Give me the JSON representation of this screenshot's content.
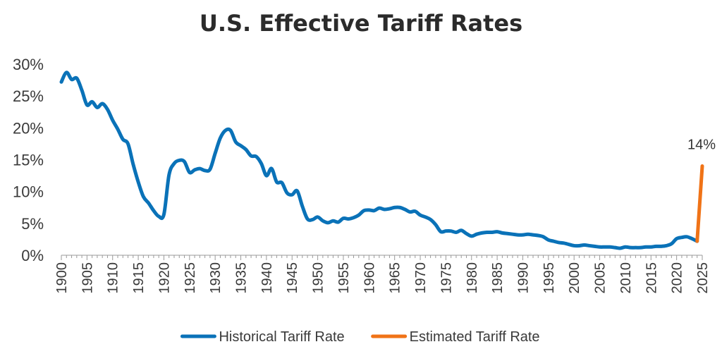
{
  "chart_data": {
    "type": "line",
    "title": "U.S. Effective Tariff Rates",
    "xlabel": "",
    "ylabel": "",
    "xlim": [
      1900,
      2025
    ],
    "ylim": [
      0,
      30
    ],
    "grid": false,
    "legend_position": "bottom",
    "y_ticks": [
      "0%",
      "5%",
      "10%",
      "15%",
      "20%",
      "25%",
      "30%"
    ],
    "y_tick_values": [
      0,
      5,
      10,
      15,
      20,
      25,
      30
    ],
    "x_ticks": [
      "1900",
      "1905",
      "1910",
      "1915",
      "1920",
      "1925",
      "1930",
      "1935",
      "1940",
      "1945",
      "1950",
      "1955",
      "1960",
      "1965",
      "1970",
      "1975",
      "1980",
      "1985",
      "1990",
      "1995",
      "2000",
      "2005",
      "2010",
      "2015",
      "2020",
      "2025"
    ],
    "x_tick_values": [
      1900,
      1905,
      1910,
      1915,
      1920,
      1925,
      1930,
      1935,
      1940,
      1945,
      1950,
      1955,
      1960,
      1965,
      1970,
      1975,
      1980,
      1985,
      1990,
      1995,
      2000,
      2005,
      2010,
      2015,
      2020,
      2025
    ],
    "series": [
      {
        "name": "Historical Tariff Rate",
        "color": "#0a72b8",
        "x": [
          1900,
          1901,
          1902,
          1903,
          1904,
          1905,
          1906,
          1907,
          1908,
          1909,
          1910,
          1911,
          1912,
          1913,
          1914,
          1915,
          1916,
          1917,
          1918,
          1919,
          1920,
          1921,
          1922,
          1923,
          1924,
          1925,
          1926,
          1927,
          1928,
          1929,
          1930,
          1931,
          1932,
          1933,
          1934,
          1935,
          1936,
          1937,
          1938,
          1939,
          1940,
          1941,
          1942,
          1943,
          1944,
          1945,
          1946,
          1947,
          1948,
          1949,
          1950,
          1951,
          1952,
          1953,
          1954,
          1955,
          1956,
          1957,
          1958,
          1959,
          1960,
          1961,
          1962,
          1963,
          1964,
          1965,
          1966,
          1967,
          1968,
          1969,
          1970,
          1971,
          1972,
          1973,
          1974,
          1975,
          1976,
          1977,
          1978,
          1979,
          1980,
          1981,
          1982,
          1983,
          1984,
          1985,
          1986,
          1987,
          1988,
          1989,
          1990,
          1991,
          1992,
          1993,
          1994,
          1995,
          1996,
          1997,
          1998,
          1999,
          2000,
          2001,
          2002,
          2003,
          2004,
          2005,
          2006,
          2007,
          2008,
          2009,
          2010,
          2011,
          2012,
          2013,
          2014,
          2015,
          2016,
          2017,
          2018,
          2019,
          2020,
          2021,
          2022,
          2023,
          2024
        ],
        "values": [
          27.2,
          28.7,
          27.6,
          27.8,
          25.9,
          23.6,
          24.1,
          23.2,
          23.8,
          22.9,
          21.2,
          19.8,
          18.2,
          17.5,
          14.3,
          11.5,
          9.2,
          8.2,
          7.0,
          6.1,
          6.4,
          12.6,
          14.4,
          14.9,
          14.7,
          13.0,
          13.4,
          13.6,
          13.3,
          13.5,
          16.0,
          18.4,
          19.6,
          19.6,
          17.8,
          17.2,
          16.6,
          15.6,
          15.5,
          14.4,
          12.5,
          13.6,
          11.5,
          11.4,
          9.8,
          9.5,
          10.1,
          7.7,
          5.7,
          5.6,
          6.0,
          5.4,
          5.1,
          5.4,
          5.2,
          5.8,
          5.7,
          5.9,
          6.3,
          7.0,
          7.1,
          7.0,
          7.4,
          7.2,
          7.3,
          7.5,
          7.5,
          7.2,
          6.8,
          6.9,
          6.3,
          6.0,
          5.6,
          4.8,
          3.7,
          3.8,
          3.8,
          3.6,
          3.9,
          3.4,
          3.0,
          3.3,
          3.5,
          3.6,
          3.6,
          3.7,
          3.5,
          3.4,
          3.3,
          3.2,
          3.2,
          3.3,
          3.2,
          3.1,
          2.9,
          2.4,
          2.2,
          2.0,
          1.9,
          1.7,
          1.5,
          1.5,
          1.6,
          1.5,
          1.4,
          1.3,
          1.3,
          1.3,
          1.2,
          1.1,
          1.3,
          1.2,
          1.2,
          1.2,
          1.3,
          1.3,
          1.4,
          1.4,
          1.5,
          1.8,
          2.6,
          2.8,
          2.9,
          2.6,
          2.2
        ]
      },
      {
        "name": "Estimated Tariff Rate",
        "color": "#f07317",
        "x": [
          2024,
          2025
        ],
        "values": [
          2.2,
          14
        ]
      }
    ],
    "annotations": [
      {
        "text": "14%",
        "x": 2025,
        "y": 14
      }
    ]
  }
}
